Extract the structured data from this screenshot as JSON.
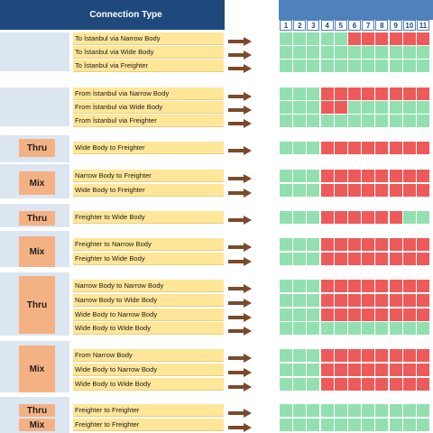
{
  "header": {
    "title": "Connection Type"
  },
  "colors": {
    "open": "#92e0b0",
    "closed": "#ee5a5a",
    "header": "#1f497d",
    "label_bg": "#ffe699",
    "tag_bg": "#f4b183"
  },
  "hour_numbers": [
    "1",
    "2",
    "3",
    "4",
    "5",
    "6",
    "7",
    "8",
    "9",
    "10",
    "11"
  ],
  "tags": [
    "Thru",
    "Mix",
    "Thru",
    "Mix",
    "Thru",
    "Mix",
    "Thru",
    "Mix"
  ],
  "rows": [
    {
      "label": "To İstanbul via Narrow Body",
      "cells": "ooooorrrrrr"
    },
    {
      "label": "To İstanbul via Wide Body",
      "cells": "ooooooooooo"
    },
    {
      "label": "To İstanbul via Freighter",
      "cells": "ooooooooooo"
    },
    {
      "label": "From İstanbul via Narrow Body",
      "cells": "ooorrrrrrrr"
    },
    {
      "label": "From İstanbul via Wide Body",
      "cells": "ooorroooooo"
    },
    {
      "label": "From İstanbul via Freighter",
      "cells": "ooooooooooo"
    },
    {
      "label": "Wide Body to Freighter",
      "cells": "ooorrrrrrrr"
    },
    {
      "label": "Narrow Body to Freighter",
      "cells": "ooorrrrrrrr"
    },
    {
      "label": "Wide Body to Freighter",
      "cells": "ooorrrrrrrr"
    },
    {
      "label": "Freighter to Wide Body",
      "cells": "ooorrrrrroo"
    },
    {
      "label": "Freighter to Narrow Body",
      "cells": "ooorrrrrrrr"
    },
    {
      "label": "Freighter to Wide Body",
      "cells": "ooorrrrrrrr"
    },
    {
      "label": "Narrow Body to Narrow Body",
      "cells": "ooorrrrrrrr"
    },
    {
      "label": "Narrow Body to Wide Body",
      "cells": "ooorrrrrrrr"
    },
    {
      "label": "Wide Body to Narrow Body",
      "cells": "ooorrrrrrrr"
    },
    {
      "label": "Wide Body to Wide Body",
      "cells": "ooooooooooo"
    },
    {
      "label": "From Narrow Body",
      "cells": "ooorrrrrrrr"
    },
    {
      "label": "Wide Body to Narrow Body",
      "cells": "ooorrrrrrrr"
    },
    {
      "label": "Wide Body to Wide Body",
      "cells": "ooorrrrrrrr"
    },
    {
      "label": "Freighter to Freighter",
      "cells": "ooooooooooo"
    },
    {
      "label": "Freighter to Freighter",
      "cells": "ooooooooooo"
    }
  ]
}
